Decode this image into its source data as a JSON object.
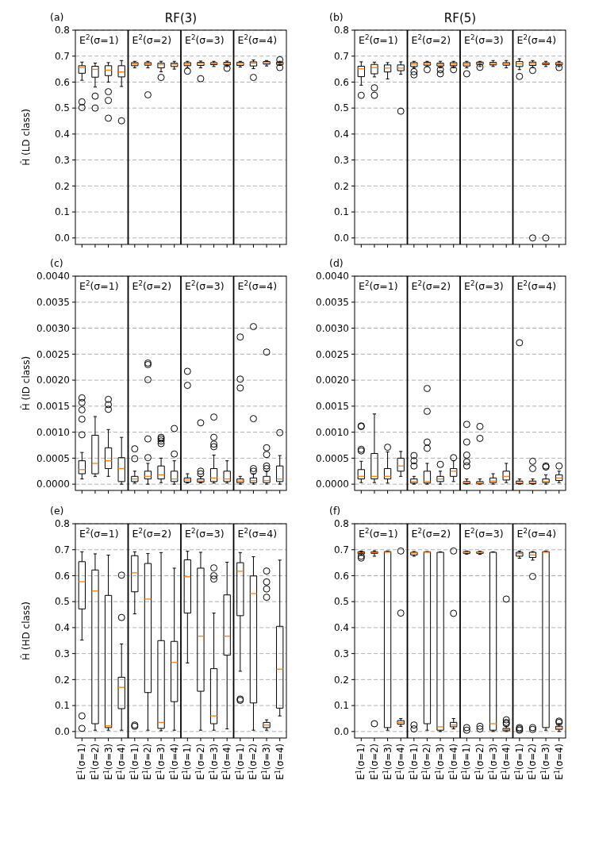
{
  "chart_data": [
    {
      "type": "box",
      "title": "RF(3)",
      "ylabel": "Ĥ (LD class)",
      "annotations": [
        "(a)",
        "E$^{2}$(σ=1)",
        "E$^{2}$(σ=2)",
        "E$^{2}$(σ=3)",
        "E$^{2}$(σ=4)"
      ],
      "categories": [
        null,
        null,
        null,
        null,
        null,
        null,
        null,
        null,
        null,
        null,
        null,
        null,
        null,
        null,
        null,
        null
      ],
      "ylim": [
        -0.025,
        0.8
      ],
      "yticks": [
        {
          "value": 0,
          "label": "0.0"
        },
        0.1,
        0.2,
        0.3,
        0.4,
        0.5,
        0.6,
        0.7,
        0.8
      ],
      "grid": "y",
      "tick_labels": "y",
      "line_style": "dashed",
      "boxes": [
        {
          "low": 0.607,
          "q1": 0.634,
          "median": 0.656,
          "q3": 0.663,
          "high": 0.677,
          "outliers": [
            0.524,
            0.502
          ]
        },
        {
          "low": 0.581,
          "q1": 0.619,
          "median": 0.649,
          "q3": 0.661,
          "high": 0.673,
          "outliers": [
            0.546,
            0.5
          ]
        },
        {
          "low": 0.6,
          "q1": 0.625,
          "median": 0.646,
          "q3": 0.663,
          "high": 0.675,
          "outliers": [
            0.563,
            0.529,
            0.461
          ]
        },
        {
          "low": 0.583,
          "q1": 0.62,
          "median": 0.639,
          "q3": 0.663,
          "high": 0.683,
          "outliers": [
            0.451
          ]
        },
        {
          "low": 0.655,
          "q1": 0.663,
          "median": 0.67,
          "q3": 0.675,
          "high": 0.68
        },
        {
          "low": 0.655,
          "q1": 0.665,
          "median": 0.67,
          "q3": 0.675,
          "high": 0.68,
          "outliers": [
            0.551
          ]
        },
        {
          "low": 0.64,
          "q1": 0.655,
          "median": 0.667,
          "q3": 0.673,
          "high": 0.68,
          "outliers": [
            0.618
          ]
        },
        {
          "low": 0.65,
          "q1": 0.66,
          "median": 0.668,
          "q3": 0.673,
          "high": 0.68
        },
        {
          "low": 0.655,
          "q1": 0.663,
          "median": 0.669,
          "q3": 0.675,
          "high": 0.68,
          "outliers": [
            0.642
          ]
        },
        {
          "low": 0.655,
          "q1": 0.664,
          "median": 0.671,
          "q3": 0.676,
          "high": 0.681,
          "outliers": [
            0.613
          ]
        },
        {
          "low": 0.66,
          "q1": 0.667,
          "median": 0.671,
          "q3": 0.675,
          "high": 0.68
        },
        {
          "low": 0.66,
          "q1": 0.666,
          "median": 0.671,
          "q3": 0.676,
          "high": 0.681,
          "outliers": [
            0.653
          ]
        },
        {
          "low": 0.658,
          "q1": 0.664,
          "median": 0.67,
          "q3": 0.676,
          "high": 0.68
        },
        {
          "low": 0.652,
          "q1": 0.662,
          "median": 0.673,
          "q3": 0.678,
          "high": 0.685,
          "outliers": [
            0.618
          ]
        },
        {
          "low": 0.662,
          "q1": 0.669,
          "median": 0.674,
          "q3": 0.679,
          "high": 0.683
        },
        {
          "low": 0.664,
          "q1": 0.668,
          "median": 0.673,
          "q3": 0.677,
          "high": 0.68,
          "outliers": [
            0.686,
            0.656
          ]
        }
      ]
    },
    {
      "type": "box",
      "title": "RF(5)",
      "annotations": [
        "(b)",
        "E$^{2}$(σ=1)",
        "E$^{2}$(σ=2)",
        "E$^{2}$(σ=3)",
        "E$^{2}$(σ=4)"
      ],
      "categories": [
        null,
        null,
        null,
        null,
        null,
        null,
        null,
        null,
        null,
        null,
        null,
        null,
        null,
        null,
        null,
        null
      ],
      "ylim": [
        -0.025,
        0.8
      ],
      "yticks": [
        {
          "value": 0,
          "label": "0.0"
        },
        0.1,
        0.2,
        0.3,
        0.4,
        0.5,
        0.6,
        0.7,
        0.8
      ],
      "grid": "y",
      "tick_labels": "y",
      "line_style": "dashed",
      "boxes": [
        {
          "low": 0.588,
          "q1": 0.621,
          "median": 0.651,
          "q3": 0.661,
          "high": 0.678,
          "outliers": [
            0.549
          ]
        },
        {
          "low": 0.62,
          "q1": 0.632,
          "median": 0.656,
          "q3": 0.668,
          "high": 0.677,
          "outliers": [
            0.578,
            0.549
          ]
        },
        {
          "low": 0.612,
          "q1": 0.639,
          "median": 0.654,
          "q3": 0.666,
          "high": 0.675
        },
        {
          "low": 0.63,
          "q1": 0.644,
          "median": 0.654,
          "q3": 0.666,
          "high": 0.678,
          "outliers": [
            0.488
          ]
        },
        {
          "low": 0.655,
          "q1": 0.66,
          "median": 0.669,
          "q3": 0.675,
          "high": 0.68,
          "outliers": [
            0.64,
            0.628
          ]
        },
        {
          "low": 0.66,
          "q1": 0.665,
          "median": 0.671,
          "q3": 0.676,
          "high": 0.68,
          "outliers": [
            0.648
          ]
        },
        {
          "low": 0.655,
          "q1": 0.662,
          "median": 0.668,
          "q3": 0.673,
          "high": 0.68,
          "outliers": [
            0.648,
            0.632
          ]
        },
        {
          "low": 0.655,
          "q1": 0.663,
          "median": 0.669,
          "q3": 0.675,
          "high": 0.68,
          "outliers": [
            0.648
          ]
        },
        {
          "low": 0.655,
          "q1": 0.662,
          "median": 0.669,
          "q3": 0.675,
          "high": 0.68,
          "outliers": [
            0.632
          ]
        },
        {
          "low": 0.66,
          "q1": 0.668,
          "median": 0.673,
          "q3": 0.677,
          "high": 0.68,
          "outliers": [
            0.657
          ]
        },
        {
          "low": 0.66,
          "q1": 0.666,
          "median": 0.671,
          "q3": 0.676,
          "high": 0.683
        },
        {
          "low": 0.655,
          "q1": 0.665,
          "median": 0.67,
          "q3": 0.675,
          "high": 0.683
        },
        {
          "low": 0.648,
          "q1": 0.66,
          "median": 0.671,
          "q3": 0.679,
          "high": 0.69,
          "outliers": [
            0.622
          ]
        },
        {
          "low": 0.656,
          "q1": 0.664,
          "median": 0.671,
          "q3": 0.677,
          "high": 0.683,
          "outliers": [
            0.645,
            0
          ]
        },
        {
          "low": 0.66,
          "q1": 0.667,
          "median": 0.67,
          "q3": 0.674,
          "high": 0.68,
          "outliers": [
            0
          ]
        },
        {
          "low": 0.66,
          "q1": 0.666,
          "median": 0.671,
          "q3": 0.675,
          "high": 0.68,
          "outliers": [
            0.656
          ]
        }
      ]
    },
    {
      "type": "box",
      "ylabel": "Ĥ (ID class)",
      "annotations": [
        "(c)",
        "E$^{2}$(σ=1)",
        "E$^{2}$(σ=2)",
        "E$^{2}$(σ=3)",
        "E$^{2}$(σ=4)"
      ],
      "categories": [
        null,
        null,
        null,
        null,
        null,
        null,
        null,
        null,
        null,
        null,
        null,
        null,
        null,
        null,
        null,
        null
      ],
      "ylim": [
        -0.00012,
        0.004
      ],
      "yticks": [
        {
          "value": 0,
          "label": "0.0000"
        },
        {
          "value": 0.0005,
          "label": "0.0005"
        },
        {
          "value": 0.001,
          "label": "0.0010"
        },
        {
          "value": 0.0015,
          "label": "0.0015"
        },
        {
          "value": 0.002,
          "label": "0.0020"
        },
        {
          "value": 0.0025,
          "label": "0.0025"
        },
        {
          "value": 0.003,
          "label": "0.0030"
        },
        {
          "value": 0.0035,
          "label": "0.0035"
        },
        {
          "value": 0.004,
          "label": "0.0040"
        }
      ],
      "grid": "y",
      "tick_labels": "y",
      "line_style": "dashed",
      "boxes": [
        {
          "low": 0.0001,
          "q1": 0.0002,
          "median": 0.00028,
          "q3": 0.00045,
          "high": 0.00061,
          "outliers": [
            0.00166,
            0.00157,
            0.00143,
            0.00125,
            0.00095
          ]
        },
        {
          "low": 0.00015,
          "q1": 0.0002,
          "median": 0.0004,
          "q3": 0.00094,
          "high": 0.0013
        },
        {
          "low": 0.00015,
          "q1": 0.0003,
          "median": 0.00045,
          "q3": 0.0007,
          "high": 0.00105,
          "outliers": [
            0.00163,
            0.00153,
            0.00144
          ]
        },
        {
          "low": 0,
          "q1": 5e-05,
          "median": 0.0003,
          "q3": 0.00051,
          "high": 0.0009
        },
        {
          "low": 2e-05,
          "q1": 5e-05,
          "median": 0.0001,
          "q3": 0.00015,
          "high": 0.00025,
          "outliers": [
            0.00068,
            0.00049
          ]
        },
        {
          "low": 0,
          "q1": 0.0001,
          "median": 0.00015,
          "q3": 0.00025,
          "high": 0.0004,
          "outliers": [
            0.00233,
            0.0023,
            0.00201,
            0.00087,
            0.00051
          ]
        },
        {
          "low": 3e-05,
          "q1": 0.0001,
          "median": 0.00018,
          "q3": 0.00035,
          "high": 0.0005,
          "outliers": [
            0.0009,
            0.00087,
            0.00083,
            0.00078
          ]
        },
        {
          "low": 0,
          "q1": 5e-05,
          "median": 0.0001,
          "q3": 0.00025,
          "high": 0.00045,
          "outliers": [
            0.00107,
            0.00058
          ]
        },
        {
          "low": 2e-05,
          "q1": 4e-05,
          "median": 8e-05,
          "q3": 0.00012,
          "high": 0.0002,
          "outliers": [
            0.00217,
            0.0019
          ]
        },
        {
          "low": 2e-05,
          "q1": 4e-05,
          "median": 6e-05,
          "q3": 0.0001,
          "high": 0.00015,
          "outliers": [
            0.00118,
            0.00025,
            0.0002
          ]
        },
        {
          "low": 2e-05,
          "q1": 5e-05,
          "median": 0.00012,
          "q3": 0.0003,
          "high": 0.00056,
          "outliers": [
            0.00129,
            0.0009,
            0.00077,
            0.00072
          ]
        },
        {
          "low": 2e-05,
          "q1": 5e-05,
          "median": 0.0001,
          "q3": 0.00025,
          "high": 0.00045
        },
        {
          "low": 0,
          "q1": 3e-05,
          "median": 6e-05,
          "q3": 0.0001,
          "high": 0.00015,
          "outliers": [
            0.00283,
            0.00202,
            0.00185
          ]
        },
        {
          "low": 0,
          "q1": 3e-05,
          "median": 7e-05,
          "q3": 0.00012,
          "high": 0.0002,
          "outliers": [
            0.00303,
            0.00126,
            0.0003,
            0.00025
          ]
        },
        {
          "low": 0,
          "q1": 3e-05,
          "median": 7e-05,
          "q3": 0.00015,
          "high": 0.00025,
          "outliers": [
            0.00254,
            0.0007,
            0.00057,
            0.00035,
            0.0003
          ]
        },
        {
          "low": 0,
          "q1": 5e-05,
          "median": 0.0001,
          "q3": 0.00035,
          "high": 0.00055,
          "outliers": [
            0.00099
          ]
        }
      ]
    },
    {
      "type": "box",
      "annotations": [
        "(d)",
        "E$^{2}$(σ=1)",
        "E$^{2}$(σ=2)",
        "E$^{2}$(σ=3)",
        "E$^{2}$(σ=4)"
      ],
      "categories": [
        null,
        null,
        null,
        null,
        null,
        null,
        null,
        null,
        null,
        null,
        null,
        null,
        null,
        null,
        null,
        null
      ],
      "ylim": [
        -0.00012,
        0.004
      ],
      "yticks": [
        {
          "value": 0,
          "label": "0.0000"
        },
        {
          "value": 0.0005,
          "label": "0.0005"
        },
        {
          "value": 0.001,
          "label": "0.0010"
        },
        {
          "value": 0.0015,
          "label": "0.0015"
        },
        {
          "value": 0.002,
          "label": "0.0020"
        },
        {
          "value": 0.0025,
          "label": "0.0025"
        },
        {
          "value": 0.003,
          "label": "0.0030"
        },
        {
          "value": 0.0035,
          "label": "0.0035"
        },
        {
          "value": 0.004,
          "label": "0.0040"
        }
      ],
      "grid": "y",
      "tick_labels": "y",
      "line_style": "dashed",
      "boxes": [
        {
          "low": 3e-05,
          "q1": 0.0001,
          "median": 0.00015,
          "q3": 0.00028,
          "high": 0.00044,
          "outliers": [
            0.00112,
            0.00111,
            0.00067,
            0.00064
          ]
        },
        {
          "low": 3e-05,
          "q1": 0.0001,
          "median": 0.00015,
          "q3": 0.00059,
          "high": 0.00135
        },
        {
          "low": 2e-05,
          "q1": 0.0001,
          "median": 0.00015,
          "q3": 0.0003,
          "high": 0.00062,
          "outliers": [
            0.00071
          ]
        },
        {
          "low": 0.00015,
          "q1": 0.00025,
          "median": 0.00035,
          "q3": 0.0005,
          "high": 0.00063
        },
        {
          "low": 0,
          "q1": 2e-05,
          "median": 5e-05,
          "q3": 0.0001,
          "high": 0.00015,
          "outliers": [
            0.00055,
            0.00045,
            0.00035
          ]
        },
        {
          "low": 0,
          "q1": 2e-05,
          "median": 5e-05,
          "q3": 0.00025,
          "high": 0.0004,
          "outliers": [
            0.00184,
            0.0014,
            0.00081,
            0.00069
          ]
        },
        {
          "low": 0,
          "q1": 5e-05,
          "median": 0.0001,
          "q3": 0.00015,
          "high": 0.00025,
          "outliers": [
            0.00038
          ]
        },
        {
          "low": 5e-05,
          "q1": 0.00015,
          "median": 0.00025,
          "q3": 0.0003,
          "high": 0.00045,
          "outliers": [
            0.00051
          ]
        },
        {
          "low": 0,
          "q1": 1e-05,
          "median": 3e-05,
          "q3": 5e-05,
          "high": 0.0001,
          "outliers": [
            0.00115,
            0.00081,
            0.00056,
            0.00043,
            0.00035
          ]
        },
        {
          "low": 0,
          "q1": 1e-05,
          "median": 2e-05,
          "q3": 5e-05,
          "high": 0.0001,
          "outliers": [
            0.00111,
            0.00088
          ]
        },
        {
          "low": 0,
          "q1": 3e-05,
          "median": 6e-05,
          "q3": 0.00012,
          "high": 0.0002
        },
        {
          "low": 3e-05,
          "q1": 8e-05,
          "median": 0.00015,
          "q3": 0.00025,
          "high": 0.0004
        },
        {
          "low": 0,
          "q1": 1e-05,
          "median": 3e-05,
          "q3": 6e-05,
          "high": 0.0001,
          "outliers": [
            0.00272
          ]
        },
        {
          "low": 0,
          "q1": 1e-05,
          "median": 3e-05,
          "q3": 6e-05,
          "high": 0.0001,
          "outliers": [
            0.00044,
            0.0003
          ]
        },
        {
          "low": 0,
          "q1": 3e-05,
          "median": 5e-05,
          "q3": 0.0001,
          "high": 0.00018,
          "outliers": [
            0.00035,
            0.00033
          ]
        },
        {
          "low": 3e-05,
          "q1": 7e-05,
          "median": 0.00012,
          "q3": 0.00018,
          "high": 0.00025,
          "outliers": [
            0.00035
          ]
        }
      ]
    },
    {
      "type": "box",
      "ylabel": "Ĥ (HD class)",
      "annotations": [
        "(e)",
        "E$^{2}$(σ=1)",
        "E$^{2}$(σ=2)",
        "E$^{2}$(σ=3)",
        "E$^{2}$(σ=4)"
      ],
      "categories": [
        "E$^{1}$(σ=1)",
        "E$^{1}$(σ=2)",
        "E$^{1}$(σ=3)",
        "E$^{1}$(σ=4)",
        "E$^{1}$(σ=1)",
        "E$^{1}$(σ=2)",
        "E$^{1}$(σ=3)",
        "E$^{1}$(σ=4)",
        "E$^{1}$(σ=1)",
        "E$^{1}$(σ=2)",
        "E$^{1}$(σ=3)",
        "E$^{1}$(σ=4)",
        "E$^{1}$(σ=1)",
        "E$^{1}$(σ=2)",
        "E$^{1}$(σ=3)",
        "E$^{1}$(σ=4)"
      ],
      "ylim": [
        -0.025,
        0.8
      ],
      "yticks": [
        {
          "value": 0,
          "label": "0.0"
        },
        0.1,
        0.2,
        0.3,
        0.4,
        0.5,
        0.6,
        0.7,
        0.8
      ],
      "grid": "y",
      "line_style": "dashed",
      "boxes": [
        {
          "low": 0.352,
          "q1": 0.472,
          "median": 0.577,
          "q3": 0.654,
          "high": 0.692,
          "outliers": [
            0.06,
            0.012
          ]
        },
        {
          "low": 0.005,
          "q1": 0.03,
          "median": 0.541,
          "q3": 0.622,
          "high": 0.684
        },
        {
          "low": 0.005,
          "q1": 0.015,
          "median": 0.022,
          "q3": 0.524,
          "high": 0.679
        },
        {
          "low": 0.005,
          "q1": 0.088,
          "median": 0.17,
          "q3": 0.209,
          "high": 0.337,
          "outliers": [
            0.602,
            0.439
          ]
        },
        {
          "low": 0.453,
          "q1": 0.538,
          "median": 0.611,
          "q3": 0.677,
          "high": 0.692,
          "outliers": [
            0.025,
            0.02
          ]
        },
        {
          "low": 0.005,
          "q1": 0.15,
          "median": 0.51,
          "q3": 0.647,
          "high": 0.685
        },
        {
          "low": 0.003,
          "q1": 0.012,
          "median": 0.035,
          "q3": 0.35,
          "high": 0.689
        },
        {
          "low": 0.005,
          "q1": 0.115,
          "median": 0.266,
          "q3": 0.347,
          "high": 0.629
        },
        {
          "low": 0.264,
          "q1": 0.456,
          "median": 0.596,
          "q3": 0.661,
          "high": 0.694
        },
        {
          "low": 0.005,
          "q1": 0.155,
          "median": 0.367,
          "q3": 0.629,
          "high": 0.69
        },
        {
          "low": 0.005,
          "q1": 0.03,
          "median": 0.06,
          "q3": 0.242,
          "high": 0.456,
          "outliers": [
            0.63,
            0.6,
            0.587
          ]
        },
        {
          "low": 0.01,
          "q1": 0.294,
          "median": 0.367,
          "q3": 0.526,
          "high": 0.652
        },
        {
          "low": 0.232,
          "q1": 0.446,
          "median": 0.617,
          "q3": 0.65,
          "high": 0.689,
          "outliers": [
            0.125,
            0.12
          ]
        },
        {
          "low": 0.005,
          "q1": 0.11,
          "median": 0.531,
          "q3": 0.599,
          "high": 0.673
        },
        {
          "low": 0.005,
          "q1": 0.015,
          "median": 0.025,
          "q3": 0.035,
          "high": 0.045,
          "outliers": [
            0.618,
            0.576,
            0.549,
            0.517
          ]
        },
        {
          "low": 0.06,
          "q1": 0.09,
          "median": 0.24,
          "q3": 0.405,
          "high": 0.66
        }
      ]
    },
    {
      "type": "box",
      "annotations": [
        "(f)",
        "E$^{2}$(σ=1)",
        "E$^{2}$(σ=2)",
        "E$^{2}$(σ=3)",
        "E$^{2}$(σ=4)"
      ],
      "categories": [
        "E$^{1}$(σ=1)",
        "E$^{1}$(σ=2)",
        "E$^{1}$(σ=3)",
        "E$^{1}$(σ=4)",
        "E$^{1}$(σ=1)",
        "E$^{1}$(σ=2)",
        "E$^{1}$(σ=3)",
        "E$^{1}$(σ=4)",
        "E$^{1}$(σ=1)",
        "E$^{1}$(σ=2)",
        "E$^{1}$(σ=3)",
        "E$^{1}$(σ=4)",
        "E$^{1}$(σ=1)",
        "E$^{1}$(σ=2)",
        "E$^{1}$(σ=3)",
        "E$^{1}$(σ=4)"
      ],
      "ylim": [
        -0.025,
        0.8
      ],
      "yticks": [
        {
          "value": 0,
          "label": "0.0"
        },
        0.1,
        0.2,
        0.3,
        0.4,
        0.5,
        0.6,
        0.7,
        0.8
      ],
      "grid": "y",
      "line_style": "dashed",
      "boxes": [
        {
          "low": 0.678,
          "q1": 0.684,
          "median": 0.688,
          "q3": 0.692,
          "high": 0.695,
          "outliers": [
            0.675,
            0.668
          ]
        },
        {
          "low": 0.675,
          "q1": 0.686,
          "median": 0.689,
          "q3": 0.692,
          "high": 0.696,
          "outliers": [
            0.03
          ]
        },
        {
          "low": 0.005,
          "q1": 0.015,
          "median": 0.69,
          "q3": 0.693,
          "high": 0.695
        },
        {
          "low": 0.02,
          "q1": 0.028,
          "median": 0.035,
          "q3": 0.042,
          "high": 0.05,
          "outliers": [
            0.695,
            0.456
          ]
        },
        {
          "low": 0.675,
          "q1": 0.68,
          "median": 0.687,
          "q3": 0.69,
          "high": 0.693,
          "outliers": [
            0.025,
            0.01
          ]
        },
        {
          "low": 0.005,
          "q1": 0.03,
          "median": 0.69,
          "q3": 0.692,
          "high": 0.693
        },
        {
          "low": 0,
          "q1": 0.005,
          "median": 0.018,
          "q3": 0.69,
          "high": 0.692
        },
        {
          "low": 0.01,
          "q1": 0.018,
          "median": 0.025,
          "q3": 0.035,
          "high": 0.05,
          "outliers": [
            0.695,
            0.455
          ]
        },
        {
          "low": 0.683,
          "q1": 0.686,
          "median": 0.69,
          "q3": 0.693,
          "high": 0.695,
          "outliers": [
            0.015,
            0.005
          ]
        },
        {
          "low": 0.682,
          "q1": 0.686,
          "median": 0.69,
          "q3": 0.692,
          "high": 0.694,
          "outliers": [
            0.02,
            0.01
          ]
        },
        {
          "low": 0,
          "q1": 0.005,
          "median": 0.03,
          "q3": 0.69,
          "high": 0.692
        },
        {
          "low": 0,
          "q1": 0.003,
          "median": 0.007,
          "q3": 0.012,
          "high": 0.02,
          "outliers": [
            0.51,
            0.045,
            0.035,
            0.03
          ]
        },
        {
          "low": 0.667,
          "q1": 0.675,
          "median": 0.685,
          "q3": 0.69,
          "high": 0.695,
          "outliers": [
            0.015,
            0.01,
            0.005
          ]
        },
        {
          "low": 0.66,
          "q1": 0.67,
          "median": 0.68,
          "q3": 0.69,
          "high": 0.693,
          "outliers": [
            0.597,
            0.015,
            0.008
          ]
        },
        {
          "low": 0.005,
          "q1": 0.015,
          "median": 0.69,
          "q3": 0.693,
          "high": 0.695
        },
        {
          "low": 0,
          "q1": 0.008,
          "median": 0.013,
          "q3": 0.02,
          "high": 0.03,
          "outliers": [
            0.04,
            0.035
          ]
        }
      ]
    }
  ]
}
